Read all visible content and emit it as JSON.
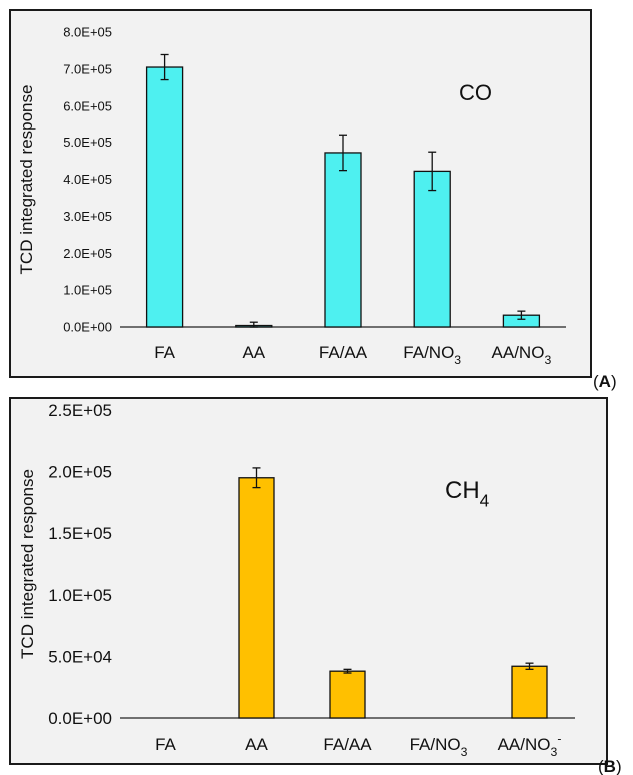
{
  "colors": {
    "panel_border": "#1a1a1a",
    "plot_bg": "#f2f2f2",
    "axis": "#222222",
    "text": "#111111",
    "panel_a_bar": "#4ef0f0",
    "panel_b_bar": "#ffc000"
  },
  "chart_data": [
    {
      "type": "bar",
      "panel_label": "A",
      "annotation": "CO",
      "ylabel": "TCD integrated response",
      "xlabel": "",
      "categories": [
        "FA",
        "AA",
        "FA/AA",
        "FA/NO3",
        "AA/NO3"
      ],
      "category_tex": [
        "FA",
        "AA",
        "FA/AA",
        "FA/NO_3",
        "AA/NO_3"
      ],
      "values": [
        705000,
        4000,
        472000,
        422000,
        32000
      ],
      "errors": [
        34000,
        9000,
        48000,
        52000,
        11000
      ],
      "ylim": [
        0,
        800000
      ],
      "yticks": [
        "0.0E+00",
        "1.0E+05",
        "2.0E+05",
        "3.0E+05",
        "4.0E+05",
        "5.0E+05",
        "6.0E+05",
        "7.0E+05",
        "8.0E+05"
      ],
      "grid": false,
      "legend": "none"
    },
    {
      "type": "bar",
      "panel_label": "B",
      "annotation": "CH4",
      "annotation_tex": "CH_4",
      "ylabel": "TCD integrated response",
      "xlabel": "",
      "categories": [
        "FA",
        "AA",
        "FA/AA",
        "FA/NO3",
        "AA/NO3-"
      ],
      "category_tex": [
        "FA",
        "AA",
        "FA/AA",
        "FA/NO_3",
        "AA/NO_3^-"
      ],
      "values": [
        0,
        195000,
        38000,
        0,
        42000
      ],
      "errors": [
        0,
        8000,
        1500,
        0,
        2500
      ],
      "ylim": [
        0,
        250000
      ],
      "yticks": [
        "0.0E+00",
        "5.0E+04",
        "1.0E+05",
        "1.5E+05",
        "2.0E+05",
        "2.5E+05"
      ],
      "grid": false,
      "legend": "none"
    }
  ]
}
